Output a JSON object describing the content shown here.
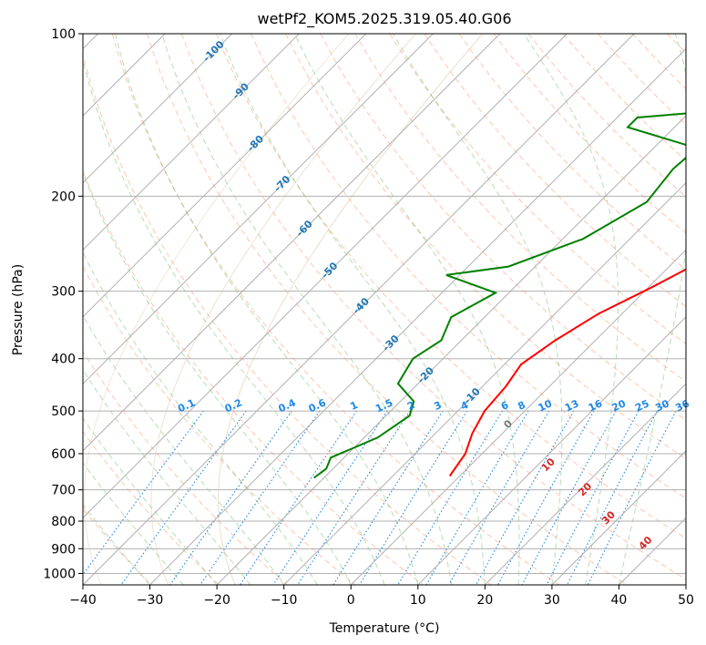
{
  "chart_data": {
    "type": "line",
    "title": "wetPf2_KOM5.2025.319.05.40.G06",
    "xlabel": "Temperature (°C)",
    "ylabel": "Pressure (hPa)",
    "xlim": [
      -40,
      50
    ],
    "ylim": [
      1050,
      100
    ],
    "y_scale": "log",
    "grid": true,
    "x_ticks": [
      -40,
      -30,
      -20,
      -10,
      0,
      10,
      20,
      30,
      40,
      50
    ],
    "x_tick_labels": [
      "−40",
      "−30",
      "−20",
      "−10",
      "0",
      "10",
      "20",
      "30",
      "40",
      "50"
    ],
    "y_ticks": [
      100,
      200,
      300,
      400,
      500,
      600,
      700,
      800,
      900,
      1000
    ],
    "y_tick_labels": [
      "100",
      "200",
      "300",
      "400",
      "500",
      "600",
      "700",
      "800",
      "900",
      "1000"
    ],
    "colors": {
      "temperature": "#ff0000",
      "dewpoint": "#008000",
      "isotherm_labels": "#1f77b4",
      "mixing_ratio": "#1e88e5",
      "dry_adiabat": "#ff7f50",
      "moist_adiabat": "#2ca02c",
      "wet_bulb_labels": "#d62728"
    },
    "series": [
      {
        "key": "temperature",
        "points": [
          [
            30,
            100
          ],
          [
            28.5,
            110
          ],
          [
            26.5,
            125
          ],
          [
            25.5,
            137
          ],
          [
            23,
            147
          ],
          [
            17.5,
            157
          ],
          [
            15.5,
            170
          ],
          [
            13.5,
            185
          ],
          [
            10,
            205
          ],
          [
            8,
            230
          ],
          [
            4.5,
            260
          ],
          [
            0.5,
            295
          ],
          [
            -3.5,
            330
          ],
          [
            -6,
            370
          ],
          [
            -7.5,
            410
          ],
          [
            -6.5,
            450
          ],
          [
            -6,
            500
          ],
          [
            -4.5,
            550
          ],
          [
            -2.5,
            600
          ],
          [
            -1.5,
            660
          ]
        ]
      },
      {
        "key": "dewpoint",
        "points": [
          [
            0,
            100
          ],
          [
            -2,
            115
          ],
          [
            -5,
            135
          ],
          [
            -27,
            143
          ],
          [
            -27,
            149
          ],
          [
            -13.5,
            163
          ],
          [
            -14,
            178
          ],
          [
            -13,
            205
          ],
          [
            -17,
            240
          ],
          [
            -24,
            270
          ],
          [
            -32,
            280
          ],
          [
            -22,
            302
          ],
          [
            -25,
            335
          ],
          [
            -23,
            370
          ],
          [
            -24.5,
            400
          ],
          [
            -23,
            445
          ],
          [
            -18,
            480
          ],
          [
            -16.5,
            510
          ],
          [
            -18,
            560
          ],
          [
            -22,
            610
          ],
          [
            -21,
            640
          ],
          [
            -21.5,
            665
          ]
        ]
      }
    ],
    "isotherm_labels": [
      "-100",
      "-90",
      "-80",
      "-70",
      "-60",
      "-50",
      "-40",
      "-30",
      "-20",
      "-10"
    ],
    "isotherm_values": [
      -100,
      -90,
      -80,
      -70,
      -60,
      -50,
      -40,
      -30,
      -20,
      -10
    ],
    "isotherm_label_p": [
      108,
      128,
      160,
      190,
      230,
      275,
      320,
      375,
      430,
      470
    ],
    "mixing_ratio_labels": [
      "0.1",
      "0.2",
      "0.4",
      "0.6",
      "1",
      "1.5",
      "2",
      "3",
      "4",
      "6",
      "8",
      "10",
      "13",
      "16",
      "20",
      "25",
      "30",
      "36"
    ],
    "mixing_ratio_label_t": [
      -24.5,
      -17.5,
      -9.5,
      -5,
      0.5,
      5,
      9,
      13,
      17,
      23,
      25.5,
      29,
      33,
      36.5,
      40,
      43.5,
      46.5,
      49.5
    ],
    "wet_bulb_labels": [
      "0",
      "10",
      "20",
      "30",
      "40"
    ],
    "wet_bulb_label_pos": [
      [
        23.5,
        530
      ],
      [
        29.5,
        630
      ],
      [
        35,
        700
      ],
      [
        38.5,
        790
      ],
      [
        44,
        880
      ]
    ]
  }
}
